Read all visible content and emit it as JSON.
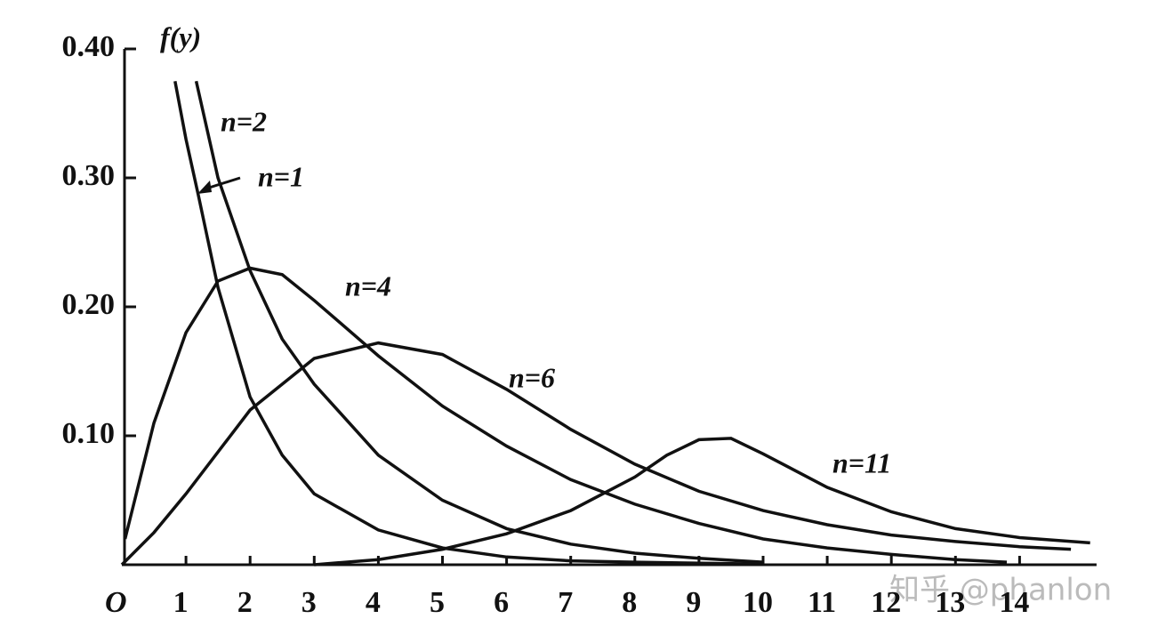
{
  "chart_data": {
    "type": "line",
    "y_label": "f(y)",
    "origin_label": "O",
    "watermark": "知乎 @phanlon",
    "xlim": [
      0,
      15.2
    ],
    "ylim": [
      0,
      0.4
    ],
    "xticks": [
      1,
      2,
      3,
      4,
      5,
      6,
      7,
      8,
      9,
      10,
      11,
      12,
      13,
      14
    ],
    "yticks": [
      {
        "value": 0.1,
        "label": "0.10"
      },
      {
        "value": 0.2,
        "label": "0.20"
      },
      {
        "value": 0.3,
        "label": "0.30"
      },
      {
        "value": 0.4,
        "label": "0.40"
      }
    ],
    "color": "#111111",
    "series": [
      {
        "name": "n=1",
        "x": [
          0.83,
          1.0,
          1.2,
          1.5,
          2,
          2.5,
          3,
          4,
          5,
          6,
          7,
          8,
          10
        ],
        "values": [
          0.375,
          0.33,
          0.285,
          0.215,
          0.13,
          0.085,
          0.055,
          0.027,
          0.013,
          0.006,
          0.003,
          0.002,
          0.0005
        ]
      },
      {
        "name": "n=2",
        "x": [
          1.16,
          1.5,
          2,
          2.5,
          3,
          4,
          5,
          6,
          7,
          8,
          9,
          10
        ],
        "values": [
          0.375,
          0.3,
          0.228,
          0.175,
          0.14,
          0.085,
          0.05,
          0.028,
          0.016,
          0.009,
          0.005,
          0.002
        ]
      },
      {
        "name": "n=4",
        "x": [
          0.05,
          0.5,
          1,
          1.5,
          2,
          2.5,
          3,
          4,
          5,
          6,
          7,
          8,
          9,
          10,
          11,
          12,
          13,
          13.8
        ],
        "values": [
          0.02,
          0.11,
          0.18,
          0.22,
          0.23,
          0.225,
          0.205,
          0.162,
          0.123,
          0.092,
          0.066,
          0.047,
          0.032,
          0.02,
          0.013,
          0.008,
          0.004,
          0.002
        ]
      },
      {
        "name": "n=6",
        "x": [
          0,
          0.5,
          1,
          2,
          3,
          4,
          5,
          6,
          7,
          8,
          9,
          10,
          11,
          12,
          13,
          14,
          14.8
        ],
        "values": [
          0,
          0.025,
          0.055,
          0.12,
          0.16,
          0.172,
          0.163,
          0.136,
          0.105,
          0.078,
          0.057,
          0.042,
          0.031,
          0.023,
          0.018,
          0.014,
          0.012
        ]
      },
      {
        "name": "n=11",
        "x": [
          3,
          4,
          5,
          6,
          7,
          8,
          8.5,
          9,
          9.5,
          10,
          11,
          12,
          13,
          14,
          15.1
        ],
        "values": [
          0,
          0.004,
          0.012,
          0.024,
          0.042,
          0.068,
          0.085,
          0.097,
          0.098,
          0.086,
          0.06,
          0.041,
          0.028,
          0.021,
          0.017
        ]
      }
    ]
  }
}
